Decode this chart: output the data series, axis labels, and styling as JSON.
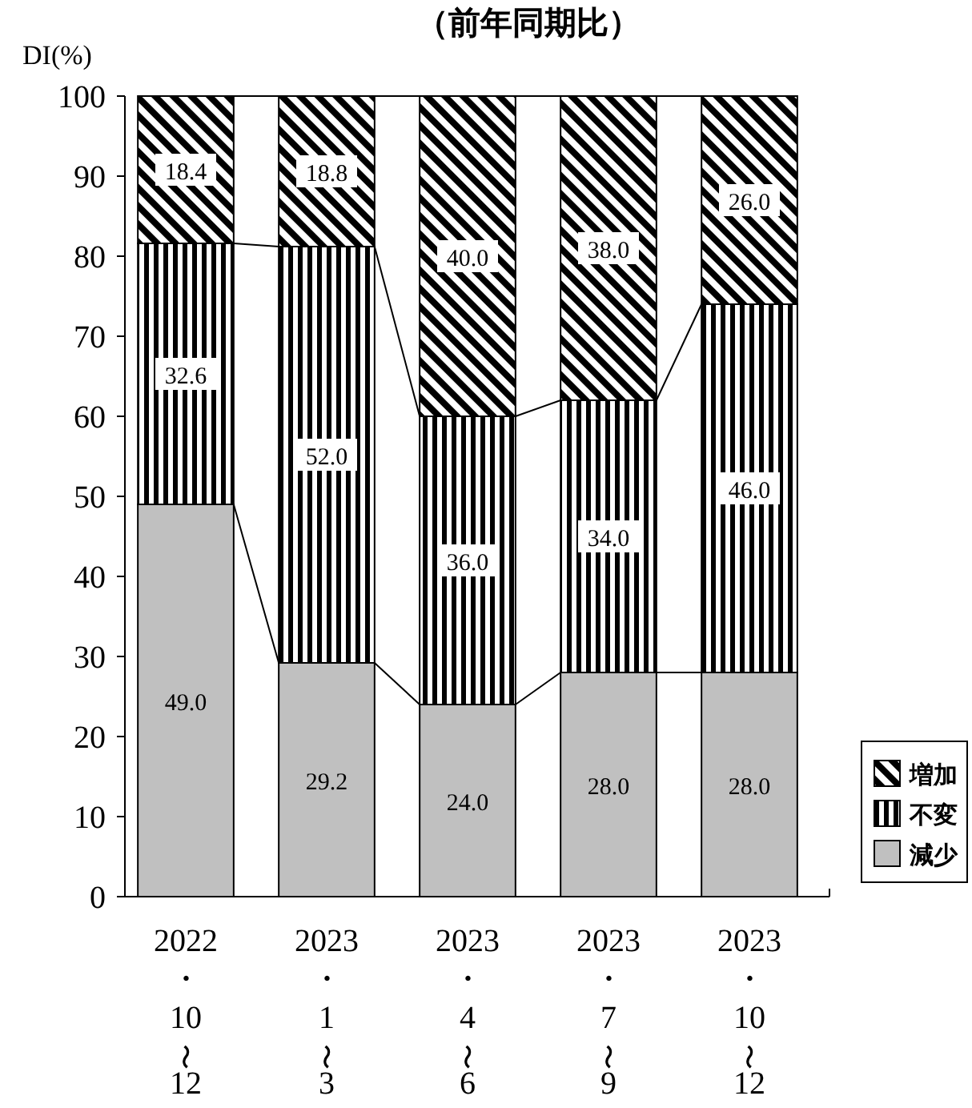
{
  "chart_data": {
    "type": "bar",
    "stacked": true,
    "title": "（前年同期比）",
    "ylabel": "DI(%)",
    "categories": [
      "2022\n・\n10\n〜\n12",
      "2023\n・\n1\n〜\n3",
      "2023\n・\n4\n〜\n6",
      "2023\n・\n7\n〜\n9",
      "2023\n・\n10\n〜\n12"
    ],
    "series": [
      {
        "name": "減少",
        "color": "#c0c0c0",
        "values": [
          49.0,
          29.2,
          24.0,
          28.0,
          28.0
        ],
        "value_labels": [
          "49.0",
          "29.2",
          "24.0",
          "28.0",
          "28.0"
        ]
      },
      {
        "name": "不変",
        "color": "#000000",
        "values": [
          32.6,
          52.0,
          36.0,
          34.0,
          46.0
        ],
        "value_labels": [
          "32.6",
          "52.0",
          "36.0",
          "34.0",
          "46.0"
        ]
      },
      {
        "name": "増加",
        "color": "#000000",
        "values": [
          18.4,
          18.8,
          40.0,
          38.0,
          26.0
        ],
        "value_labels": [
          "18.4",
          "18.8",
          "40.0",
          "38.0",
          "26.0"
        ]
      }
    ],
    "ylim": [
      0,
      100
    ],
    "yticks": [
      0,
      10,
      20,
      30,
      40,
      50,
      60,
      70,
      80,
      90,
      100
    ],
    "legend": "right",
    "grid": false
  }
}
